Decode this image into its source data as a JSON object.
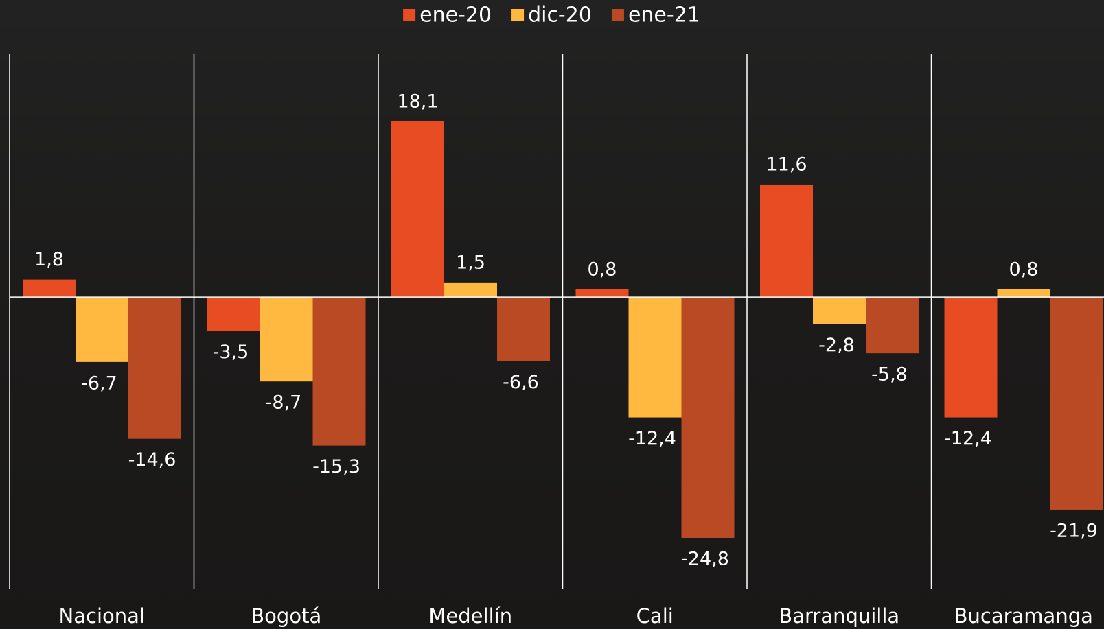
{
  "chart_data": {
    "type": "bar",
    "categories": [
      "Nacional",
      "Bogotá",
      "Medellín",
      "Cali",
      "Barranquilla",
      "Bucaramanga"
    ],
    "series": [
      {
        "name": "ene-20",
        "color": "#e84c22",
        "values": [
          1.8,
          -3.5,
          18.1,
          0.8,
          11.6,
          -12.4
        ],
        "value_labels": [
          "1,8",
          "-3,5",
          "18,1",
          "0,8",
          "11,6",
          "-12,4"
        ]
      },
      {
        "name": "dic-20",
        "color": "#ffb940",
        "values": [
          -6.7,
          -8.7,
          1.5,
          -12.4,
          -2.8,
          0.8
        ],
        "value_labels": [
          "-6,7",
          "-8,7",
          "1,5",
          "-12,4",
          "-2,8",
          "0,8"
        ]
      },
      {
        "name": "ene-21",
        "color": "#b94a24",
        "values": [
          -14.6,
          -15.3,
          -6.6,
          -24.8,
          -5.8,
          -21.9
        ],
        "value_labels": [
          "-14,6",
          "-15,3",
          "-6,6",
          "-24,8",
          "-5,8",
          "-21,9"
        ]
      }
    ]
  }
}
